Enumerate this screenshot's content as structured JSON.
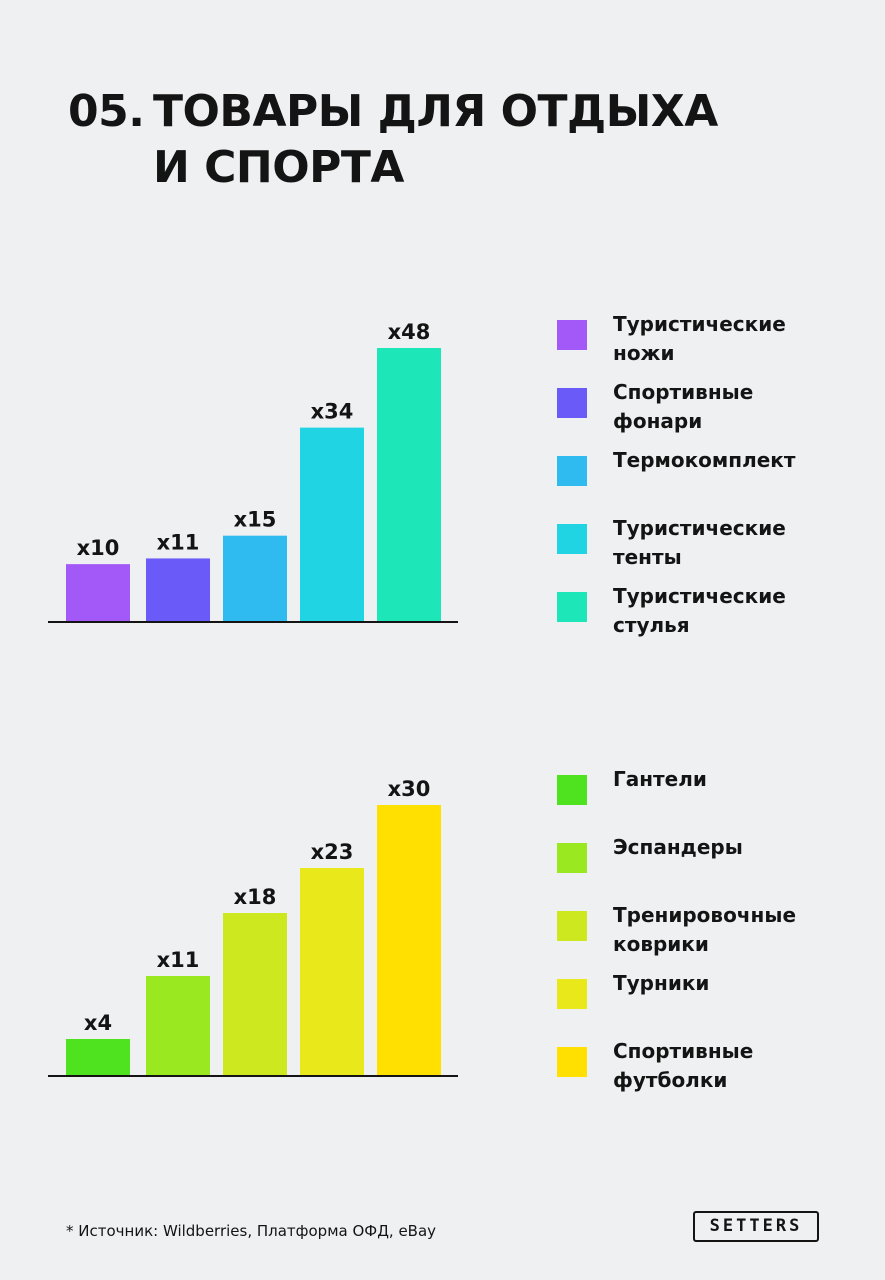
{
  "title": {
    "number": "05.",
    "line1": "ТОВАРЫ ДЛЯ ОТДЫХА",
    "line2": "И СПОРТА"
  },
  "chart_data": [
    {
      "type": "bar",
      "categories": [
        "Туристические ножи",
        "Спортивные фонари",
        "Термокомплект",
        "Туристические тенты",
        "Туристические стулья"
      ],
      "values": [
        10,
        11,
        15,
        34,
        48
      ],
      "value_labels": [
        "x10",
        "x11",
        "x15",
        "x34",
        "x48"
      ],
      "colors": [
        "#a259f7",
        "#6a5af7",
        "#2fbaf0",
        "#20d4e4",
        "#1de6b8"
      ],
      "legend": {
        "placement": "right",
        "items": [
          "Туристические\nножи",
          "Спортивные\nфонари",
          "Термокомплект",
          "Туристические\nтенты",
          "Туристические\nстулья"
        ]
      },
      "ylim": [
        0,
        48
      ],
      "grid": false
    },
    {
      "type": "bar",
      "categories": [
        "Гантели",
        "Эспандеры",
        "Тренировочные коврики",
        "Турники",
        "Спортивные футболки"
      ],
      "values": [
        4,
        11,
        18,
        23,
        30
      ],
      "value_labels": [
        "x4",
        "x11",
        "x18",
        "x23",
        "x30"
      ],
      "colors": [
        "#4fe31f",
        "#9ae81f",
        "#cde81f",
        "#e8e81a",
        "#ffe000"
      ],
      "legend": {
        "placement": "right",
        "items": [
          "Гантели",
          "Эспандеры",
          "Тренировочные\nковрики",
          "Турники",
          "Спортивные\nфутболки"
        ]
      },
      "ylim": [
        0,
        30
      ],
      "grid": false
    }
  ],
  "footnote": "* Источник: Wildberries, Платформа ОФД, eBay",
  "logo": "SETTERS"
}
